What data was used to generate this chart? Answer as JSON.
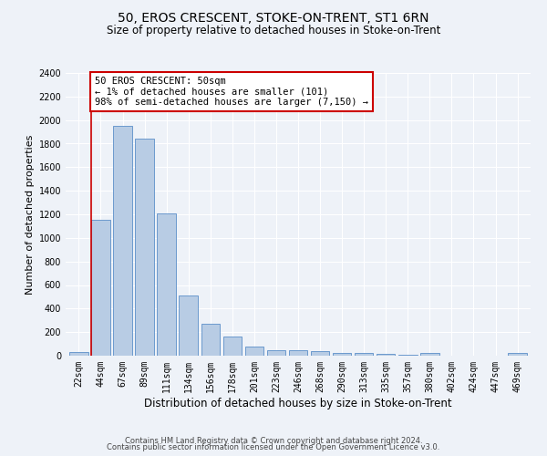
{
  "title": "50, EROS CRESCENT, STOKE-ON-TRENT, ST1 6RN",
  "subtitle": "Size of property relative to detached houses in Stoke-on-Trent",
  "xlabel": "Distribution of detached houses by size in Stoke-on-Trent",
  "ylabel": "Number of detached properties",
  "categories": [
    "22sqm",
    "44sqm",
    "67sqm",
    "89sqm",
    "111sqm",
    "134sqm",
    "156sqm",
    "178sqm",
    "201sqm",
    "223sqm",
    "246sqm",
    "268sqm",
    "290sqm",
    "313sqm",
    "335sqm",
    "357sqm",
    "380sqm",
    "402sqm",
    "424sqm",
    "447sqm",
    "469sqm"
  ],
  "values": [
    30,
    1150,
    1950,
    1840,
    1210,
    510,
    270,
    160,
    80,
    50,
    45,
    40,
    20,
    20,
    15,
    5,
    20,
    0,
    0,
    0,
    20
  ],
  "bar_color": "#b8cce4",
  "bar_edge_color": "#5b8ec9",
  "ylim": [
    0,
    2400
  ],
  "yticks": [
    0,
    200,
    400,
    600,
    800,
    1000,
    1200,
    1400,
    1600,
    1800,
    2000,
    2200,
    2400
  ],
  "redline_x": 0.575,
  "annotation_text": "50 EROS CRESCENT: 50sqm\n← 1% of detached houses are smaller (101)\n98% of semi-detached houses are larger (7,150) →",
  "annotation_box_color": "#ffffff",
  "annotation_box_edge": "#cc0000",
  "footer_line1": "Contains HM Land Registry data © Crown copyright and database right 2024.",
  "footer_line2": "Contains public sector information licensed under the Open Government Licence v3.0.",
  "background_color": "#eef2f8",
  "grid_color": "#ffffff",
  "title_fontsize": 10,
  "subtitle_fontsize": 8.5,
  "xlabel_fontsize": 8.5,
  "ylabel_fontsize": 8,
  "tick_fontsize": 7,
  "footer_fontsize": 6,
  "annot_fontsize": 7.5
}
